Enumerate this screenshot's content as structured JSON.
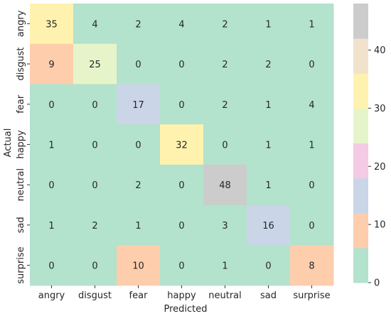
{
  "chart_data": {
    "type": "heatmap",
    "title": "",
    "xlabel": "Predicted",
    "ylabel": "Actual",
    "x_categories": [
      "angry",
      "disgust",
      "fear",
      "happy",
      "neutral",
      "sad",
      "surprise"
    ],
    "y_categories": [
      "angry",
      "disgust",
      "fear",
      "happy",
      "neutral",
      "sad",
      "surprise"
    ],
    "values": [
      [
        35,
        4,
        2,
        4,
        2,
        1,
        1
      ],
      [
        9,
        25,
        0,
        0,
        2,
        2,
        0
      ],
      [
        0,
        0,
        17,
        0,
        2,
        1,
        4
      ],
      [
        1,
        0,
        0,
        32,
        0,
        1,
        1
      ],
      [
        0,
        0,
        2,
        0,
        48,
        1,
        0
      ],
      [
        1,
        2,
        1,
        0,
        3,
        16,
        0
      ],
      [
        0,
        0,
        10,
        0,
        1,
        0,
        8
      ]
    ],
    "colorbar": {
      "range": [
        0,
        48
      ],
      "ticks": [
        0,
        10,
        20,
        30,
        40
      ],
      "colors": [
        "#b3e2cd",
        "#fdcdac",
        "#cbd5e8",
        "#f4cae4",
        "#e6f5c9",
        "#fff2ae",
        "#f1e2cc",
        "#cccccc"
      ]
    }
  }
}
